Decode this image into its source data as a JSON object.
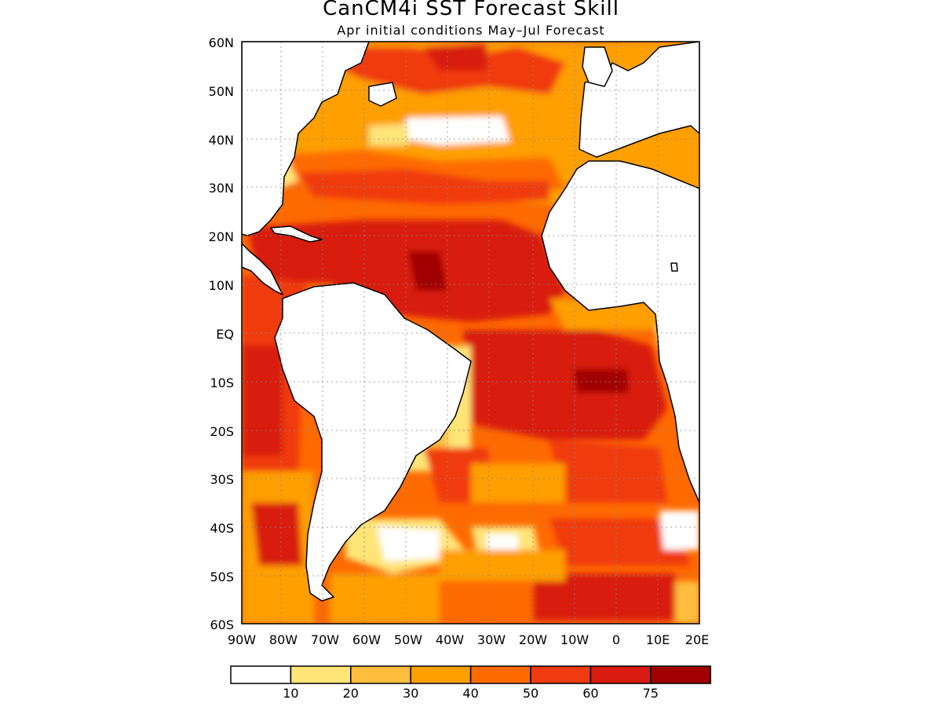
{
  "title": "CanCM4i SST Forecast Skill",
  "subtitle": "Apr initial conditions   May–Jul Forecast",
  "lat_labels": [
    "60N",
    "50N",
    "40N",
    "30N",
    "20N",
    "10N",
    "EQ",
    "10S",
    "20S",
    "30S",
    "40S",
    "50S",
    "60S"
  ],
  "lon_labels": [
    "90W",
    "80W",
    "70W",
    "60W",
    "50W",
    "40W",
    "30W",
    "20W",
    "10W",
    "0",
    "10E",
    "20E"
  ],
  "colorbar": {
    "colors": [
      "#ffffff",
      "#ffe478",
      "#ffbd3e",
      "#ff9f00",
      "#ff6a00",
      "#f03a10",
      "#d81a10",
      "#a00000"
    ],
    "labels": [
      "10",
      "20",
      "30",
      "40",
      "50",
      "60",
      "75"
    ]
  },
  "chart_data": {
    "type": "heatmap",
    "x_range": [
      -90,
      20
    ],
    "y_range": [
      -60,
      60
    ],
    "levels": [
      10,
      20,
      30,
      40,
      50,
      60,
      75
    ],
    "grid": true
  }
}
